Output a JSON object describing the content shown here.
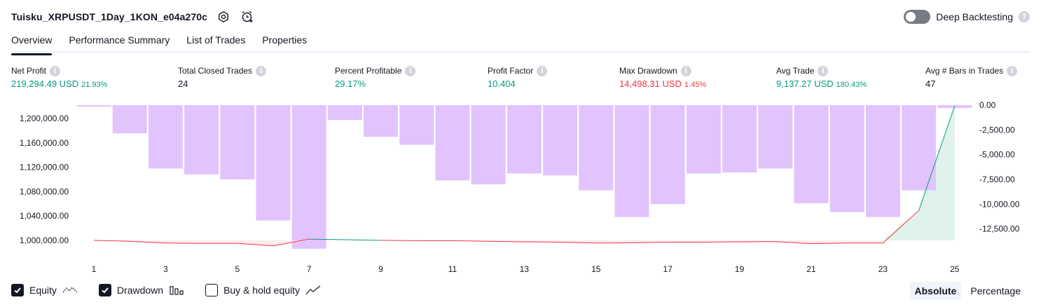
{
  "header": {
    "title": "Tuisku_XRPUSDT_1Day_1KON_e04a270c",
    "settings_icon": "settings-gear-icon",
    "alert_icon": "alarm-clock-plus-icon",
    "deep_backtesting_label": "Deep Backtesting",
    "deep_backtesting_enabled": false,
    "help_glyph": "?"
  },
  "tabs": [
    {
      "label": "Overview",
      "active": true
    },
    {
      "label": "Performance Summary",
      "active": false
    },
    {
      "label": "List of Trades",
      "active": false
    },
    {
      "label": "Properties",
      "active": false
    }
  ],
  "stats": [
    {
      "label": "Net Profit",
      "value": "219,294.49 USD",
      "pct": "21.93%",
      "color": "#089981"
    },
    {
      "label": "Total Closed Trades",
      "value": "24",
      "pct": "",
      "color": "#131722"
    },
    {
      "label": "Percent Profitable",
      "value": "29.17%",
      "pct": "",
      "color": "#089981"
    },
    {
      "label": "Profit Factor",
      "value": "10.404",
      "pct": "",
      "color": "#089981"
    },
    {
      "label": "Max Drawdown",
      "value": "14,498.31 USD",
      "pct": "1.45%",
      "color": "#f23645"
    },
    {
      "label": "Avg Trade",
      "value": "9,137.27 USD",
      "pct": "180.43%",
      "color": "#089981"
    },
    {
      "label": "Avg # Bars in Trades",
      "value": "47",
      "pct": "",
      "color": "#131722"
    }
  ],
  "info_glyph": "i",
  "colors": {
    "profit": "#089981",
    "loss": "#f23645",
    "drawdown_bar": "#e1c4fd",
    "equity_fill": "#dff2ec"
  },
  "chart_data": {
    "type": "bar",
    "x": [
      1,
      2,
      3,
      4,
      5,
      6,
      7,
      8,
      9,
      10,
      11,
      12,
      13,
      14,
      15,
      16,
      17,
      18,
      19,
      20,
      21,
      22,
      23,
      24,
      25
    ],
    "x_tick_labels": [
      "1",
      "3",
      "5",
      "7",
      "9",
      "11",
      "13",
      "15",
      "17",
      "19",
      "21",
      "23",
      "25"
    ],
    "left_axis": {
      "tick_labels": [
        "1,200,000.00",
        "1,160,000.00",
        "1,120,000.00",
        "1,080,000.00",
        "1,040,000.00",
        "1,000,000.00"
      ],
      "ylim": [
        978000,
        1222000
      ]
    },
    "right_axis": {
      "tick_labels": [
        "0.00",
        "-2,500.00",
        "-5,000.00",
        "-7,500.00",
        "-10,000.00",
        "-12,500.00"
      ],
      "ylim": [
        -15000,
        0
      ]
    },
    "series": [
      {
        "name": "Equity",
        "type": "line",
        "axis": "left",
        "values": [
          1000000,
          998500,
          995500,
          995000,
          995000,
          991000,
          1002000,
          1001000,
          1000000,
          999500,
          999500,
          998500,
          997500,
          997000,
          995500,
          996000,
          997000,
          997000,
          997500,
          998000,
          994500,
          995500,
          995500,
          1049000,
          1221000
        ]
      },
      {
        "name": "Drawdown",
        "type": "bar",
        "axis": "right",
        "values": [
          -150,
          -2850,
          -6400,
          -7000,
          -7500,
          -11650,
          -14500,
          -1500,
          -3200,
          -4000,
          -7600,
          -8000,
          -6900,
          -7100,
          -8600,
          -11300,
          -10000,
          -6900,
          -6800,
          -6400,
          -9900,
          -10800,
          -11300,
          -8600,
          -300
        ]
      }
    ],
    "grid": false,
    "legend": "bottom-left"
  },
  "legend": [
    {
      "label": "Equity",
      "checked": true,
      "icon": "equity-line-icon"
    },
    {
      "label": "Drawdown",
      "checked": true,
      "icon": "drawdown-bars-icon"
    },
    {
      "label": "Buy & hold equity",
      "checked": false,
      "icon": "buy-hold-line-icon"
    }
  ],
  "mode": {
    "absolute_label": "Absolute",
    "percentage_label": "Percentage",
    "active": "Absolute"
  }
}
